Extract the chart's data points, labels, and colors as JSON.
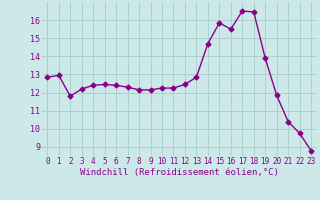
{
  "x": [
    0,
    1,
    2,
    3,
    4,
    5,
    6,
    7,
    8,
    9,
    10,
    11,
    12,
    13,
    14,
    15,
    16,
    17,
    18,
    19,
    20,
    21,
    22,
    23
  ],
  "y": [
    12.85,
    12.95,
    11.8,
    12.2,
    12.4,
    12.45,
    12.4,
    12.3,
    12.15,
    12.15,
    12.25,
    12.25,
    12.45,
    12.85,
    14.7,
    15.85,
    15.5,
    16.5,
    16.45,
    13.9,
    11.85,
    10.4,
    9.75,
    8.8
  ],
  "line_color": "#8B008B",
  "marker": "D",
  "marker_size": 2.5,
  "bg_color": "#cce8e8",
  "grid_color": "#aad0d0",
  "xlabel": "Windchill (Refroidissement éolien,°C)",
  "xlabel_color": "#8B008B",
  "tick_color": "#8B008B",
  "ylim": [
    8.5,
    17.0
  ],
  "xlim": [
    -0.5,
    23.5
  ],
  "yticks": [
    9,
    10,
    11,
    12,
    13,
    14,
    15,
    16
  ],
  "xticks": [
    0,
    1,
    2,
    3,
    4,
    5,
    6,
    7,
    8,
    9,
    10,
    11,
    12,
    13,
    14,
    15,
    16,
    17,
    18,
    19,
    20,
    21,
    22,
    23
  ],
  "xlabel_fontsize": 6.5,
  "tick_fontsize": 5.5
}
